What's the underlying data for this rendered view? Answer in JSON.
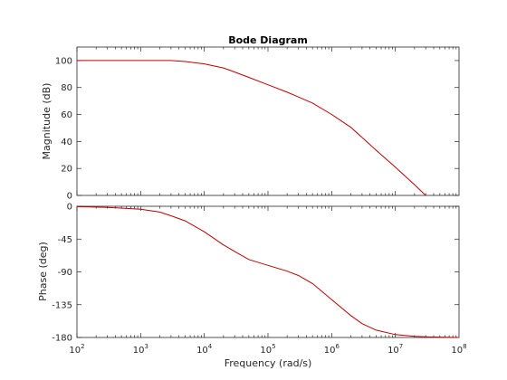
{
  "chart_data": {
    "type": "line",
    "title": "Bode Diagram",
    "xlabel": "Frequency  (rad/s)",
    "x_scale": "log",
    "xlim": [
      100,
      100000000
    ],
    "x_ticks": [
      {
        "value": 100,
        "base": "10",
        "exp": "2"
      },
      {
        "value": 1000,
        "base": "10",
        "exp": "3"
      },
      {
        "value": 10000,
        "base": "10",
        "exp": "4"
      },
      {
        "value": 100000,
        "base": "10",
        "exp": "5"
      },
      {
        "value": 1000000,
        "base": "10",
        "exp": "6"
      },
      {
        "value": 10000000,
        "base": "10",
        "exp": "7"
      },
      {
        "value": 100000000,
        "base": "10",
        "exp": "8"
      }
    ],
    "grid": false,
    "line_color": "#c00000",
    "panels": [
      {
        "id": "magnitude",
        "ylabel": "Magnitude (dB)",
        "ylim": [
          0,
          110
        ],
        "y_ticks": [
          "0",
          "20",
          "40",
          "60",
          "80",
          "100"
        ],
        "series": [
          {
            "x": [
              100,
              1000,
              3000,
              5000,
              10000,
              20000,
              30000,
              50000,
              100000,
              200000,
              300000,
              500000,
              1000000,
              2000000,
              3000000,
              5000000,
              10000000,
              20000000,
              30000000
            ],
            "y": [
              100,
              100,
              100,
              99.3,
              97.5,
              94.5,
              91.5,
              87.5,
              82,
              76.5,
              73,
              68.5,
              60,
              50.5,
              43,
              33.5,
              21,
              8,
              0
            ]
          }
        ]
      },
      {
        "id": "phase",
        "ylabel": "Phase (deg)",
        "ylim": [
          -180,
          0
        ],
        "y_ticks": [
          "-180",
          "-135",
          "-90",
          "-45",
          "0"
        ],
        "series": [
          {
            "x": [
              100,
              300,
              1000,
              2000,
              3000,
              5000,
              10000,
              20000,
              30000,
              50000,
              100000,
              200000,
              300000,
              500000,
              1000000,
              2000000,
              3000000,
              5000000,
              10000000,
              20000000,
              30000000,
              50000000,
              100000000
            ],
            "y": [
              -0.5,
              -1.5,
              -4,
              -8,
              -13,
              -20,
              -35,
              -53,
              -62,
              -73,
              -81,
              -89,
              -95,
              -106,
              -128,
              -150,
              -161,
              -170,
              -176,
              -178.5,
              -179,
              -179.5,
              -180
            ]
          }
        ]
      }
    ]
  }
}
